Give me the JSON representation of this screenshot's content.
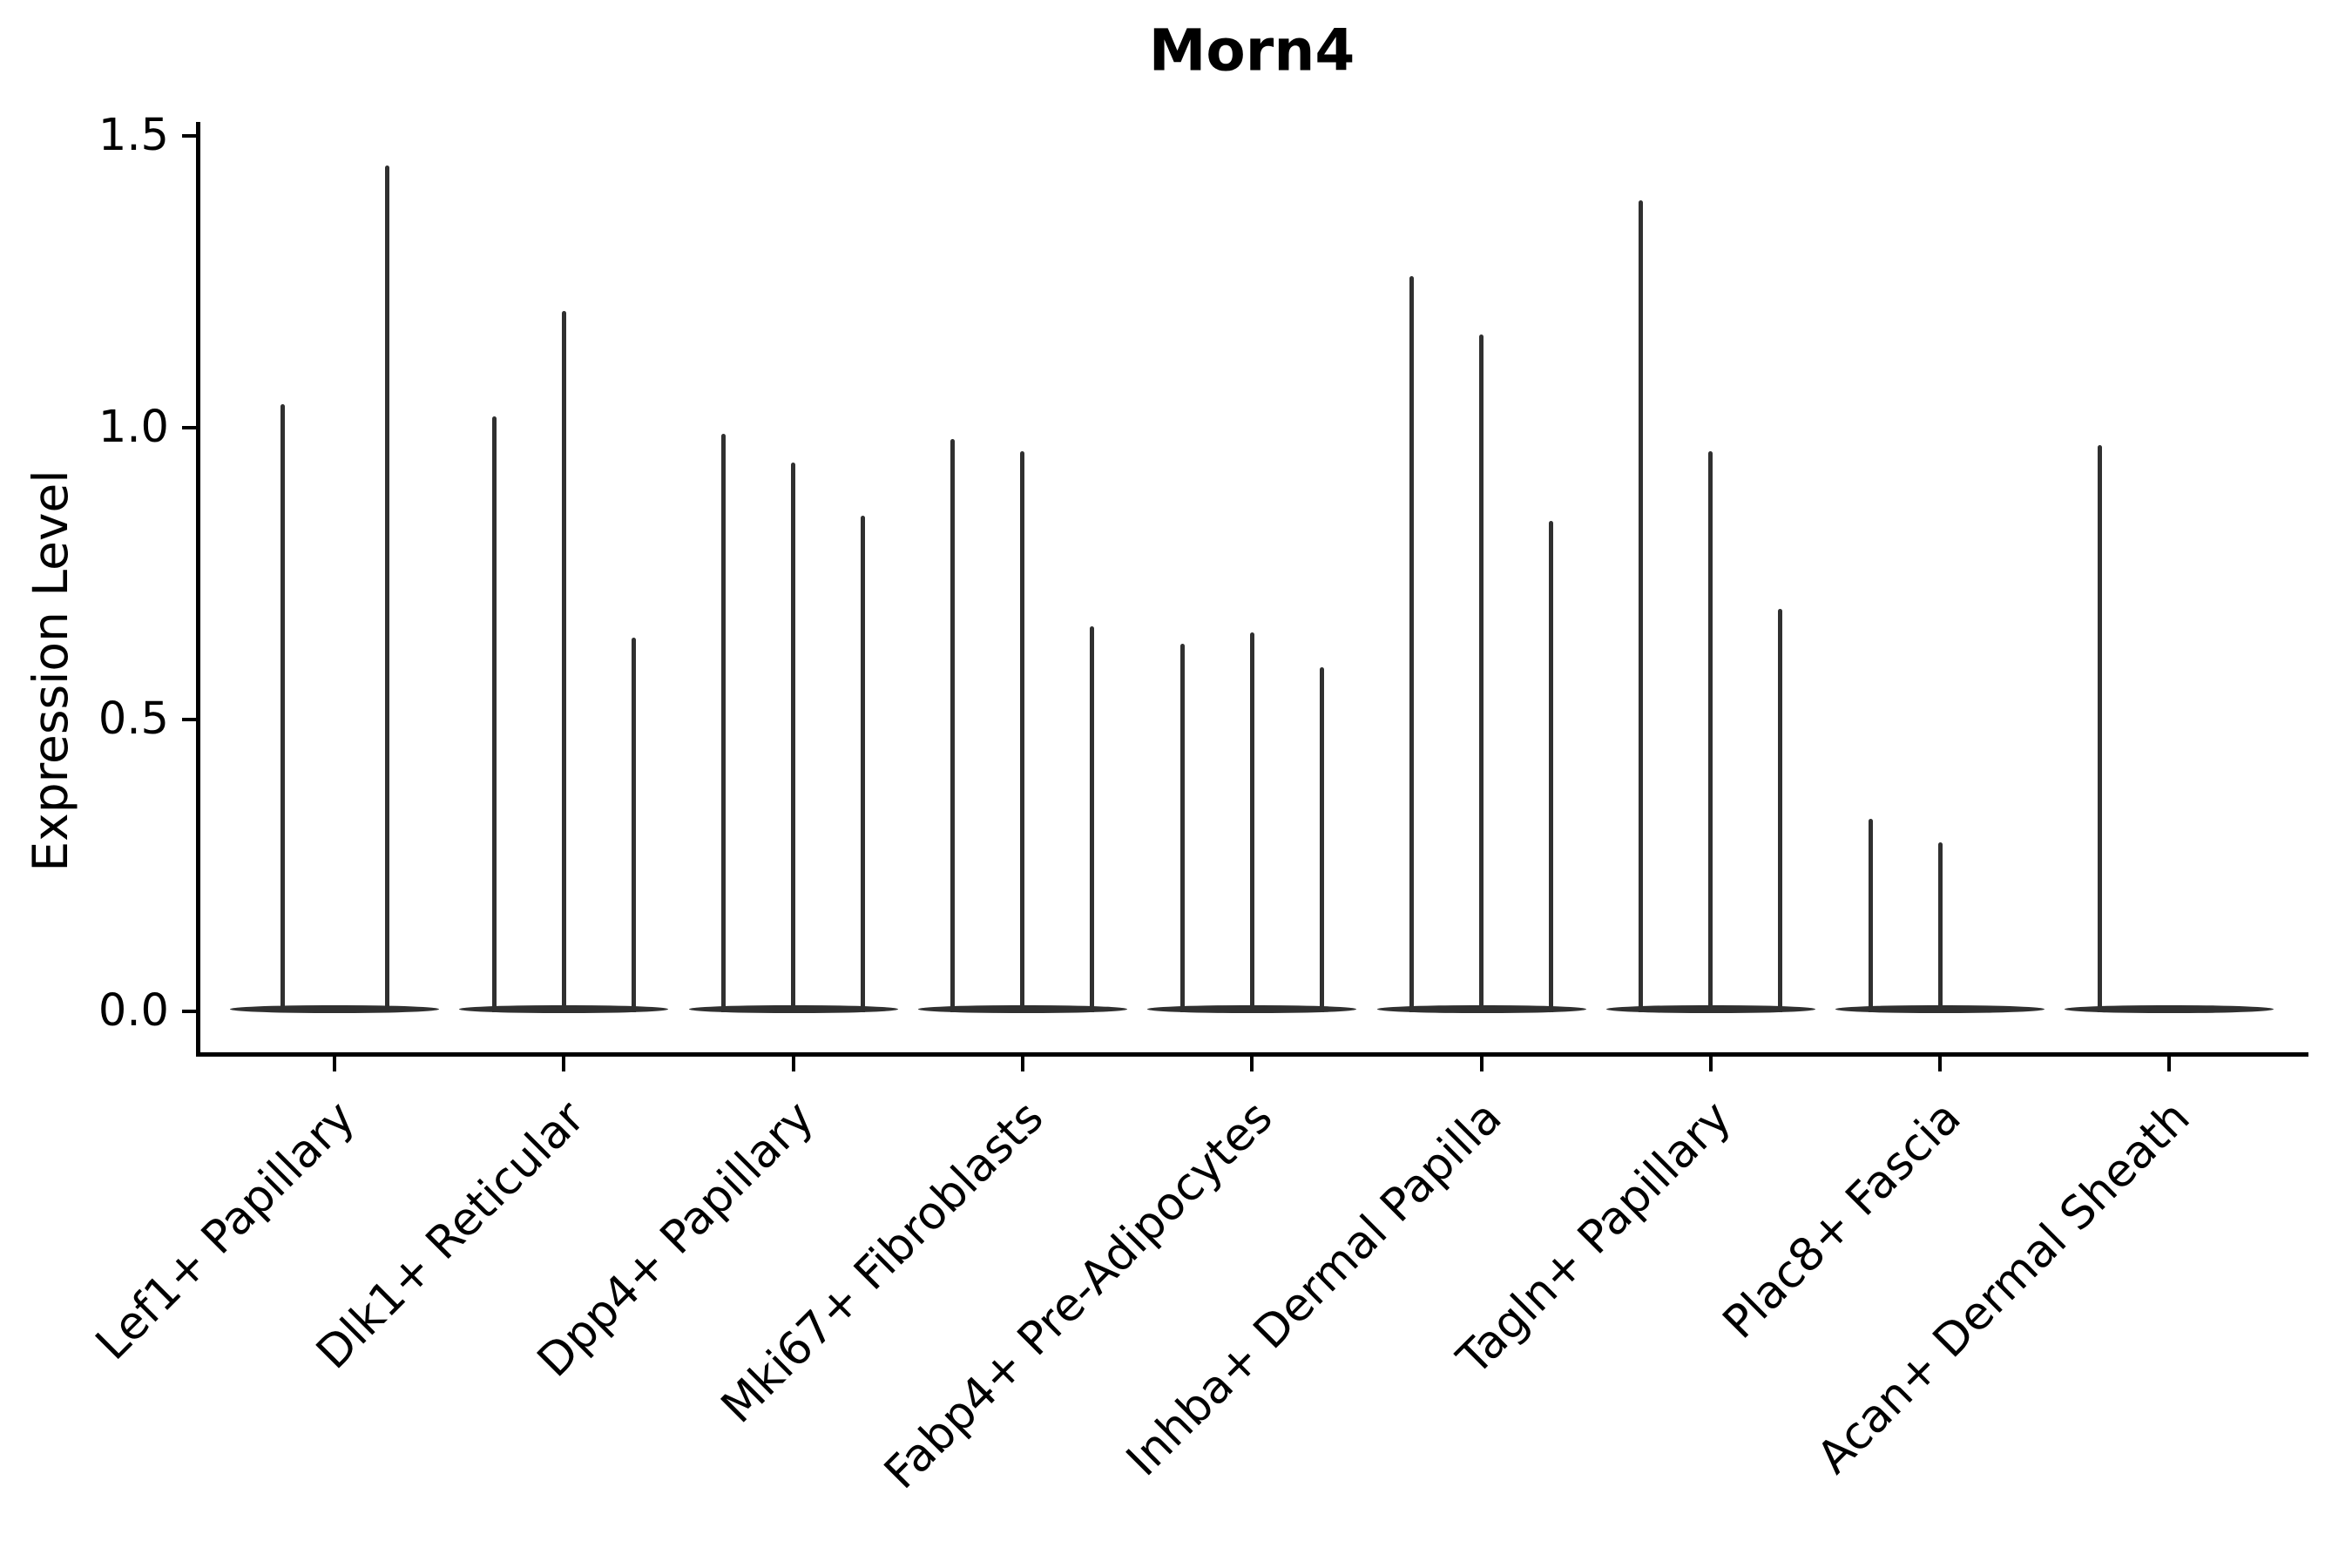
{
  "chart_data": {
    "type": "violin",
    "title": "Morn4",
    "xlabel": "",
    "ylabel": "Expression Level",
    "yticks": [
      0.0,
      0.5,
      1.0,
      1.5
    ],
    "ylim": [
      -0.07,
      1.52
    ],
    "grid": false,
    "legend": "none",
    "description": "Stacked thin violin plot of Morn4 expression; each cluster shows 1-3 near-zero-width violins (spikes) rising from a flat baseline at 0.",
    "categories": [
      "Lef1+ Papillary",
      "Dlk1+ Reticular",
      "Dpp4+ Papillary",
      "Mki67+ Fibroblasts",
      "Fabp4+ Pre-Adipocytes",
      "Inhba+ Dermal Papilla",
      "Tagln+ Papillary",
      "Plac8+ Fascia",
      "Acan+ Dermal Sheath"
    ],
    "groups": [
      {
        "label": "Lef1+ Papillary",
        "spikes": [
          {
            "rel": -60,
            "value": 1.04
          },
          {
            "rel": 60,
            "value": 1.45
          }
        ]
      },
      {
        "label": "Dlk1+ Reticular",
        "spikes": [
          {
            "rel": -80,
            "value": 1.02
          },
          {
            "rel": 0,
            "value": 1.2
          },
          {
            "rel": 80,
            "value": 0.64
          }
        ]
      },
      {
        "label": "Dpp4+ Papillary",
        "spikes": [
          {
            "rel": -80,
            "value": 0.99
          },
          {
            "rel": 0,
            "value": 0.94
          },
          {
            "rel": 80,
            "value": 0.85
          }
        ]
      },
      {
        "label": "Mki67+ Fibroblasts",
        "spikes": [
          {
            "rel": -80,
            "value": 0.98
          },
          {
            "rel": 0,
            "value": 0.96
          },
          {
            "rel": 80,
            "value": 0.66
          }
        ]
      },
      {
        "label": "Fabp4+ Pre-Adipocytes",
        "spikes": [
          {
            "rel": -80,
            "value": 0.63
          },
          {
            "rel": 0,
            "value": 0.65
          },
          {
            "rel": 80,
            "value": 0.59
          }
        ]
      },
      {
        "label": "Inhba+ Dermal Papilla",
        "spikes": [
          {
            "rel": -80,
            "value": 1.26
          },
          {
            "rel": 0,
            "value": 1.16
          },
          {
            "rel": 80,
            "value": 0.84
          }
        ]
      },
      {
        "label": "Tagln+ Papillary",
        "spikes": [
          {
            "rel": -80,
            "value": 1.39
          },
          {
            "rel": 0,
            "value": 0.96
          },
          {
            "rel": 80,
            "value": 0.69
          }
        ]
      },
      {
        "label": "Plac8+ Fascia",
        "spikes": [
          {
            "rel": -80,
            "value": 0.33
          },
          {
            "rel": 0,
            "value": 0.29
          }
        ]
      },
      {
        "label": "Acan+ Dermal Sheath",
        "spikes": [
          {
            "rel": -80,
            "value": 0.97
          }
        ]
      }
    ],
    "colors": {
      "violin": "#303030",
      "axis": "#000000",
      "text": "#000000",
      "background": "#ffffff"
    }
  }
}
